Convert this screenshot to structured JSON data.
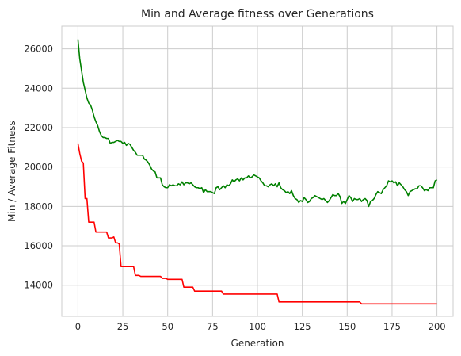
{
  "chart_data": {
    "type": "line",
    "title": "Min and Average fitness over Generations",
    "xlabel": "Generation",
    "ylabel": "Min / Average Fitness",
    "xlim": [
      -9,
      209
    ],
    "ylim": [
      12420,
      27150
    ],
    "xticks": [
      0,
      25,
      50,
      75,
      100,
      125,
      150,
      175,
      200
    ],
    "yticks": [
      14000,
      16000,
      18000,
      20000,
      22000,
      24000,
      26000
    ],
    "grid": true,
    "legend": "none",
    "series": [
      {
        "color": "#008000",
        "points": [
          [
            0,
            26480
          ],
          [
            1,
            25500
          ],
          [
            2,
            24900
          ],
          [
            3,
            24300
          ],
          [
            4,
            23900
          ],
          [
            5,
            23500
          ],
          [
            6,
            23250
          ],
          [
            7,
            23150
          ],
          [
            8,
            22900
          ],
          [
            9,
            22550
          ],
          [
            10,
            22300
          ],
          [
            11,
            22100
          ],
          [
            12,
            21800
          ],
          [
            13,
            21600
          ],
          [
            14,
            21500
          ],
          [
            15,
            21500
          ],
          [
            16,
            21450
          ],
          [
            17,
            21450
          ],
          [
            18,
            21200
          ],
          [
            19,
            21250
          ],
          [
            20,
            21250
          ],
          [
            21,
            21300
          ],
          [
            22,
            21350
          ],
          [
            23,
            21300
          ],
          [
            24,
            21300
          ],
          [
            25,
            21200
          ],
          [
            26,
            21250
          ],
          [
            27,
            21100
          ],
          [
            28,
            21200
          ],
          [
            29,
            21150
          ],
          [
            30,
            21000
          ],
          [
            31,
            20850
          ],
          [
            32,
            20750
          ],
          [
            33,
            20600
          ],
          [
            34,
            20600
          ],
          [
            35,
            20600
          ],
          [
            36,
            20600
          ],
          [
            37,
            20400
          ],
          [
            38,
            20350
          ],
          [
            39,
            20250
          ],
          [
            40,
            20100
          ],
          [
            41,
            19900
          ],
          [
            42,
            19800
          ],
          [
            43,
            19750
          ],
          [
            44,
            19450
          ],
          [
            45,
            19450
          ],
          [
            46,
            19450
          ],
          [
            47,
            19100
          ],
          [
            48,
            19000
          ],
          [
            49,
            18950
          ],
          [
            50,
            18950
          ],
          [
            51,
            19100
          ],
          [
            52,
            19050
          ],
          [
            53,
            19100
          ],
          [
            54,
            19050
          ],
          [
            55,
            19050
          ],
          [
            56,
            19150
          ],
          [
            57,
            19100
          ],
          [
            58,
            19250
          ],
          [
            59,
            19100
          ],
          [
            60,
            19200
          ],
          [
            61,
            19200
          ],
          [
            62,
            19150
          ],
          [
            63,
            19200
          ],
          [
            64,
            19100
          ],
          [
            65,
            19000
          ],
          [
            66,
            18950
          ],
          [
            67,
            18950
          ],
          [
            68,
            18900
          ],
          [
            69,
            18950
          ],
          [
            70,
            18700
          ],
          [
            71,
            18850
          ],
          [
            72,
            18750
          ],
          [
            73,
            18750
          ],
          [
            74,
            18750
          ],
          [
            75,
            18700
          ],
          [
            76,
            18650
          ],
          [
            77,
            18950
          ],
          [
            78,
            19000
          ],
          [
            79,
            18850
          ],
          [
            80,
            18950
          ],
          [
            81,
            19050
          ],
          [
            82,
            18950
          ],
          [
            83,
            19100
          ],
          [
            84,
            19050
          ],
          [
            85,
            19150
          ],
          [
            86,
            19350
          ],
          [
            87,
            19250
          ],
          [
            88,
            19350
          ],
          [
            89,
            19400
          ],
          [
            90,
            19300
          ],
          [
            91,
            19450
          ],
          [
            92,
            19350
          ],
          [
            93,
            19450
          ],
          [
            94,
            19450
          ],
          [
            95,
            19550
          ],
          [
            96,
            19450
          ],
          [
            97,
            19500
          ],
          [
            98,
            19600
          ],
          [
            99,
            19550
          ],
          [
            100,
            19500
          ],
          [
            101,
            19450
          ],
          [
            102,
            19300
          ],
          [
            103,
            19200
          ],
          [
            104,
            19050
          ],
          [
            105,
            19050
          ],
          [
            106,
            19000
          ],
          [
            107,
            19100
          ],
          [
            108,
            19150
          ],
          [
            109,
            19050
          ],
          [
            110,
            19150
          ],
          [
            111,
            19000
          ],
          [
            112,
            19200
          ],
          [
            113,
            18950
          ],
          [
            114,
            18850
          ],
          [
            115,
            18800
          ],
          [
            116,
            18700
          ],
          [
            117,
            18750
          ],
          [
            118,
            18650
          ],
          [
            119,
            18800
          ],
          [
            120,
            18550
          ],
          [
            121,
            18400
          ],
          [
            122,
            18350
          ],
          [
            123,
            18200
          ],
          [
            124,
            18300
          ],
          [
            125,
            18250
          ],
          [
            126,
            18450
          ],
          [
            127,
            18350
          ],
          [
            128,
            18200
          ],
          [
            129,
            18250
          ],
          [
            130,
            18400
          ],
          [
            131,
            18450
          ],
          [
            132,
            18550
          ],
          [
            133,
            18500
          ],
          [
            134,
            18450
          ],
          [
            135,
            18400
          ],
          [
            136,
            18350
          ],
          [
            137,
            18400
          ],
          [
            138,
            18300
          ],
          [
            139,
            18200
          ],
          [
            140,
            18300
          ],
          [
            141,
            18450
          ],
          [
            142,
            18600
          ],
          [
            143,
            18550
          ],
          [
            144,
            18550
          ],
          [
            145,
            18650
          ],
          [
            146,
            18500
          ],
          [
            147,
            18150
          ],
          [
            148,
            18250
          ],
          [
            149,
            18150
          ],
          [
            150,
            18350
          ],
          [
            151,
            18550
          ],
          [
            152,
            18450
          ],
          [
            153,
            18250
          ],
          [
            154,
            18400
          ],
          [
            155,
            18350
          ],
          [
            156,
            18350
          ],
          [
            157,
            18400
          ],
          [
            158,
            18250
          ],
          [
            159,
            18350
          ],
          [
            160,
            18400
          ],
          [
            161,
            18300
          ],
          [
            162,
            18000
          ],
          [
            163,
            18250
          ],
          [
            164,
            18300
          ],
          [
            165,
            18400
          ],
          [
            166,
            18600
          ],
          [
            167,
            18750
          ],
          [
            168,
            18700
          ],
          [
            169,
            18650
          ],
          [
            170,
            18850
          ],
          [
            171,
            18950
          ],
          [
            172,
            19050
          ],
          [
            173,
            19300
          ],
          [
            174,
            19250
          ],
          [
            175,
            19300
          ],
          [
            176,
            19200
          ],
          [
            177,
            19250
          ],
          [
            178,
            19050
          ],
          [
            179,
            19200
          ],
          [
            180,
            19100
          ],
          [
            181,
            19000
          ],
          [
            182,
            18850
          ],
          [
            183,
            18750
          ],
          [
            184,
            18550
          ],
          [
            185,
            18750
          ],
          [
            186,
            18800
          ],
          [
            187,
            18850
          ],
          [
            188,
            18900
          ],
          [
            189,
            18900
          ],
          [
            190,
            19050
          ],
          [
            191,
            19050
          ],
          [
            192,
            18950
          ],
          [
            193,
            18800
          ],
          [
            194,
            18850
          ],
          [
            195,
            18800
          ],
          [
            196,
            18950
          ],
          [
            197,
            18950
          ],
          [
            198,
            18950
          ],
          [
            199,
            19300
          ],
          [
            200,
            19350
          ]
        ]
      },
      {
        "color": "#ff0000",
        "points": [
          [
            0,
            21200
          ],
          [
            1,
            20700
          ],
          [
            2,
            20300
          ],
          [
            3,
            20200
          ],
          [
            4,
            18400
          ],
          [
            5,
            18400
          ],
          [
            6,
            17200
          ],
          [
            8,
            17200
          ],
          [
            9,
            17200
          ],
          [
            10,
            16700
          ],
          [
            16,
            16700
          ],
          [
            17,
            16400
          ],
          [
            19,
            16400
          ],
          [
            20,
            16450
          ],
          [
            21,
            16150
          ],
          [
            22,
            16150
          ],
          [
            23,
            16100
          ],
          [
            24,
            14950
          ],
          [
            31,
            14950
          ],
          [
            32,
            14500
          ],
          [
            34,
            14500
          ],
          [
            35,
            14450
          ],
          [
            46,
            14450
          ],
          [
            47,
            14350
          ],
          [
            49,
            14350
          ],
          [
            50,
            14300
          ],
          [
            58,
            14300
          ],
          [
            59,
            13900
          ],
          [
            64,
            13900
          ],
          [
            65,
            13700
          ],
          [
            80,
            13700
          ],
          [
            81,
            13550
          ],
          [
            111,
            13550
          ],
          [
            112,
            13150
          ],
          [
            157,
            13150
          ],
          [
            158,
            13050
          ],
          [
            200,
            13050
          ]
        ]
      }
    ]
  }
}
